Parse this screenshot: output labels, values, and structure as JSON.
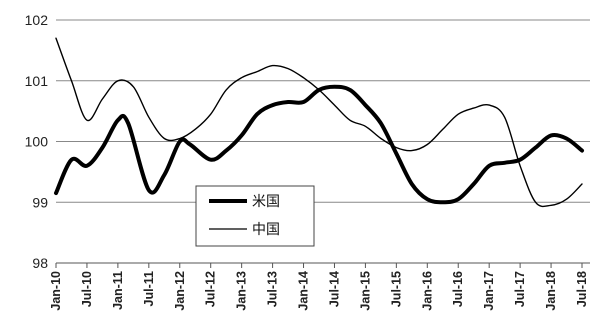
{
  "chart_data": {
    "type": "line",
    "ylim": [
      98,
      102
    ],
    "yticks": [
      98,
      99,
      100,
      101,
      102
    ],
    "grid": true,
    "legend_placement": "center-left",
    "x_tick_labels": [
      "Jan-10",
      "Jul-10",
      "Jan-11",
      "Jul-11",
      "Jan-12",
      "Jul-12",
      "Jan-13",
      "Jul-13",
      "Jan-14",
      "Jul-14",
      "Jan-15",
      "Jul-15",
      "Jan-16",
      "Jul-16",
      "Jan-17",
      "Jul-17",
      "Jan-18",
      "Jul-18"
    ],
    "x_months": [
      0,
      6,
      12,
      18,
      24,
      30,
      36,
      42,
      48,
      54,
      60,
      66,
      72,
      78,
      84,
      90,
      96,
      102
    ],
    "series": [
      {
        "name": "米国",
        "color": "#000000",
        "line_weight": "thick",
        "points": [
          [
            0,
            99.15
          ],
          [
            3,
            99.7
          ],
          [
            6,
            99.6
          ],
          [
            9,
            99.9
          ],
          [
            12,
            100.35
          ],
          [
            14,
            100.3
          ],
          [
            18,
            99.2
          ],
          [
            21,
            99.45
          ],
          [
            24,
            100.0
          ],
          [
            26,
            99.95
          ],
          [
            30,
            99.7
          ],
          [
            33,
            99.85
          ],
          [
            36,
            100.1
          ],
          [
            39,
            100.45
          ],
          [
            42,
            100.6
          ],
          [
            45,
            100.65
          ],
          [
            48,
            100.65
          ],
          [
            51,
            100.85
          ],
          [
            54,
            100.9
          ],
          [
            57,
            100.85
          ],
          [
            60,
            100.6
          ],
          [
            63,
            100.3
          ],
          [
            66,
            99.8
          ],
          [
            69,
            99.3
          ],
          [
            72,
            99.05
          ],
          [
            75,
            99.0
          ],
          [
            78,
            99.05
          ],
          [
            81,
            99.3
          ],
          [
            84,
            99.6
          ],
          [
            87,
            99.65
          ],
          [
            90,
            99.7
          ],
          [
            93,
            99.9
          ],
          [
            96,
            100.1
          ],
          [
            99,
            100.05
          ],
          [
            102,
            99.85
          ]
        ]
      },
      {
        "name": "中国",
        "color": "#000000",
        "line_weight": "thin",
        "points": [
          [
            0,
            101.7
          ],
          [
            3,
            101.0
          ],
          [
            6,
            100.35
          ],
          [
            9,
            100.7
          ],
          [
            12,
            101.0
          ],
          [
            15,
            100.9
          ],
          [
            18,
            100.4
          ],
          [
            21,
            100.05
          ],
          [
            24,
            100.05
          ],
          [
            27,
            100.2
          ],
          [
            30,
            100.45
          ],
          [
            33,
            100.85
          ],
          [
            36,
            101.05
          ],
          [
            39,
            101.15
          ],
          [
            42,
            101.25
          ],
          [
            45,
            101.2
          ],
          [
            48,
            101.05
          ],
          [
            51,
            100.85
          ],
          [
            54,
            100.6
          ],
          [
            57,
            100.35
          ],
          [
            60,
            100.25
          ],
          [
            63,
            100.05
          ],
          [
            66,
            99.9
          ],
          [
            69,
            99.85
          ],
          [
            72,
            99.95
          ],
          [
            75,
            100.2
          ],
          [
            78,
            100.45
          ],
          [
            81,
            100.55
          ],
          [
            84,
            100.6
          ],
          [
            87,
            100.4
          ],
          [
            90,
            99.6
          ],
          [
            93,
            99.0
          ],
          [
            96,
            98.95
          ],
          [
            99,
            99.05
          ],
          [
            102,
            99.3
          ]
        ]
      }
    ]
  }
}
